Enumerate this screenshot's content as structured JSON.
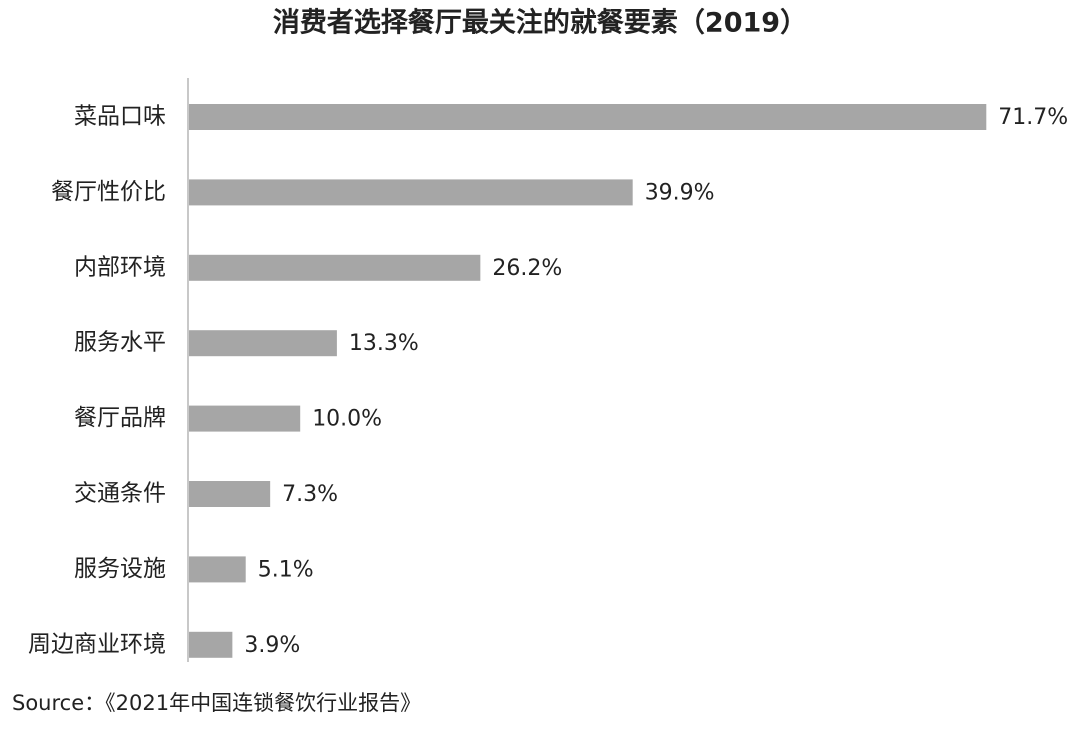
{
  "chart_data": {
    "type": "hbar",
    "title": "消费者选择餐厅最关注的就餐要素（2019）",
    "categories": [
      "菜品口味",
      "餐厅性价比",
      "内部环境",
      "服务水平",
      "餐厅品牌",
      "交通条件",
      "服务设施",
      "周边商业环境"
    ],
    "values": [
      71.7,
      39.9,
      26.2,
      13.3,
      10.0,
      7.3,
      5.1,
      3.9
    ],
    "value_labels": [
      "71.7%",
      "39.9%",
      "26.2%",
      "13.3%",
      "10.0%",
      "7.3%",
      "5.1%",
      "3.9%"
    ],
    "color": "#a6a6a6",
    "source": "Source：《2021年中国连锁餐饮行业报告》"
  }
}
